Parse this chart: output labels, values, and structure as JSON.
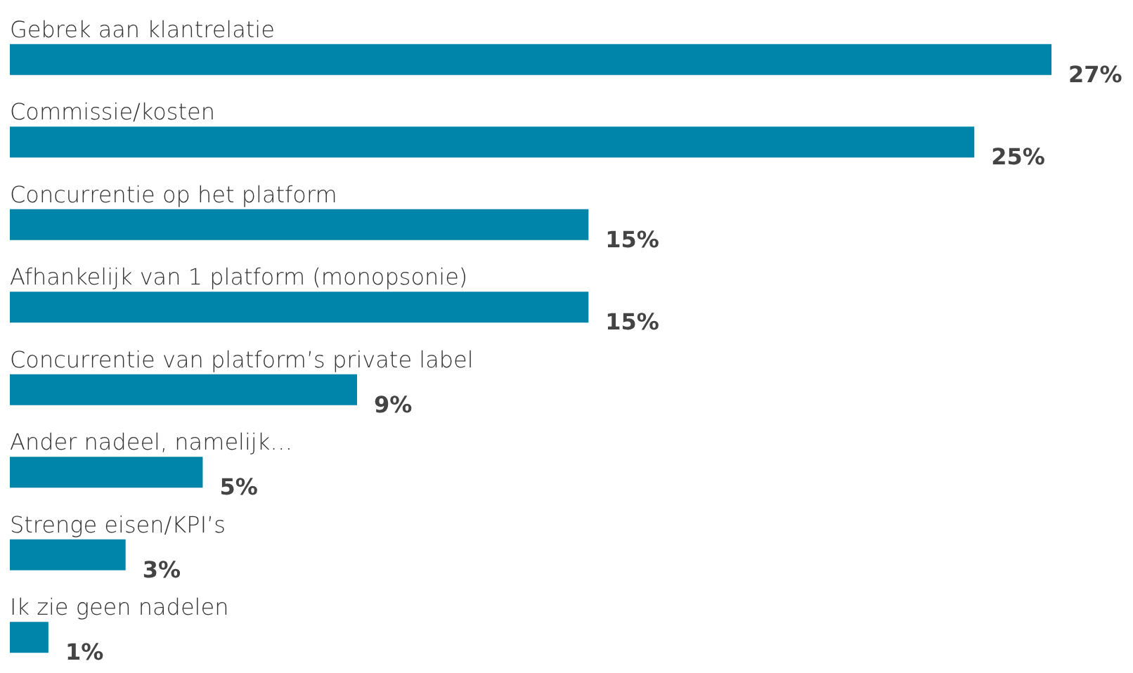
{
  "chart_data": {
    "type": "bar",
    "orientation": "horizontal",
    "categories": [
      "Gebrek aan klantrelatie",
      "Commissie/kosten",
      "Concurrentie op het platform",
      "Afhankelijk van 1 platform (monopsonie)",
      "Concurrentie van platform’s private label",
      "Ander nadeel, namelijk…",
      "Strenge eisen/KPI’s",
      "Ik zie geen nadelen"
    ],
    "values": [
      27,
      25,
      15,
      15,
      9,
      5,
      3,
      1
    ],
    "value_labels": [
      "27%",
      "25%",
      "15%",
      "15%",
      "9%",
      "5%",
      "3%",
      "1%"
    ],
    "color": "#0085aa"
  }
}
